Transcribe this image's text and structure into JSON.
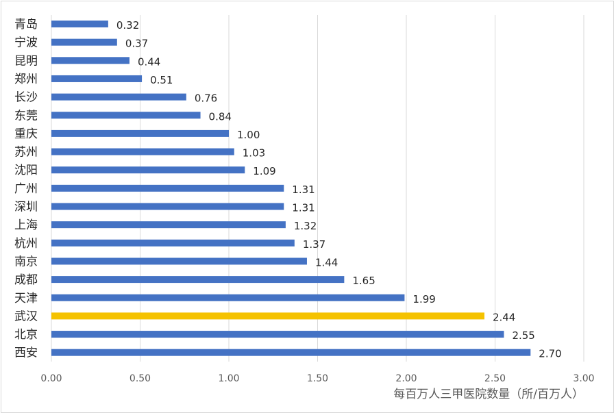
{
  "chart_data": {
    "type": "bar",
    "orientation": "horizontal",
    "categories": [
      "青岛",
      "宁波",
      "昆明",
      "郑州",
      "长沙",
      "东莞",
      "重庆",
      "苏州",
      "沈阳",
      "广州",
      "深圳",
      "上海",
      "杭州",
      "南京",
      "成都",
      "天津",
      "武汉",
      "北京",
      "西安"
    ],
    "values": [
      0.32,
      0.37,
      0.44,
      0.51,
      0.76,
      0.84,
      1.0,
      1.03,
      1.09,
      1.31,
      1.31,
      1.32,
      1.37,
      1.44,
      1.65,
      1.99,
      2.44,
      2.55,
      2.7
    ],
    "value_labels": [
      "0.32",
      "0.37",
      "0.44",
      "0.51",
      "0.76",
      "0.84",
      "1.00",
      "1.03",
      "1.09",
      "1.31",
      "1.31",
      "1.32",
      "1.37",
      "1.44",
      "1.65",
      "1.99",
      "2.44",
      "2.55",
      "2.70"
    ],
    "highlight_category": "武汉",
    "xlabel": "每百万人三甲医院数量（所/百万人）",
    "xlim": [
      0,
      3
    ],
    "xticks": [
      0,
      0.5,
      1.0,
      1.5,
      2.0,
      2.5,
      3.0
    ],
    "xtick_labels": [
      "0.00",
      "0.50",
      "1.00",
      "1.50",
      "2.00",
      "2.50",
      "3.00"
    ],
    "grid": "vertical",
    "colors": {
      "bar": "#4472c4",
      "highlight": "#f5c200",
      "grid": "#d9d9d9"
    }
  }
}
